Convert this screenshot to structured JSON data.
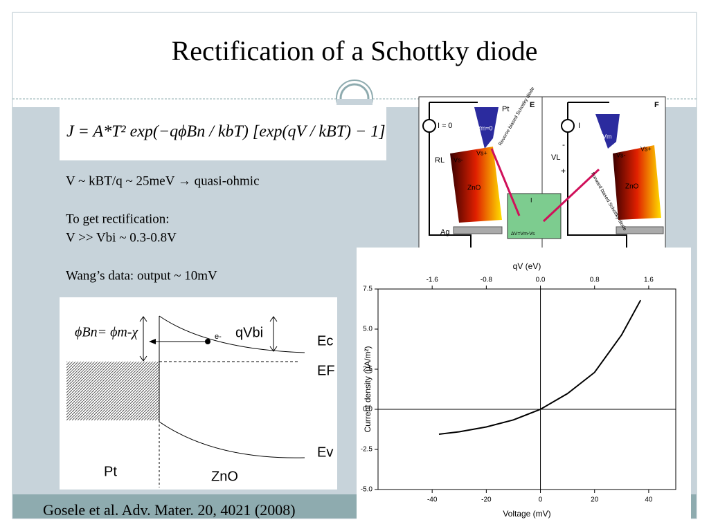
{
  "slide": {
    "title": "Rectification of a Schottky diode",
    "equation": "J = A*T² exp(−qϕBn / kbT) [exp(qV / kBT) − 1]",
    "lines": [
      "V ~ kBT/q ~ 25meV → quasi-ohmic",
      "To get rectification:",
      "V >> Vbi ~ 0.3-0.8V",
      "Wang’s data: output ~ 10mV"
    ],
    "citation": "Gosele et al. Adv. Mater. 20, 4021 (2008)"
  },
  "band_diagram": {
    "barrier": "ϕBn= ϕm-χ",
    "electron": "e-",
    "built_in": "qVbi",
    "ec": "Ec",
    "ef": "EF",
    "ev": "Ev",
    "metal": "Pt",
    "semiconductor": "ZnO"
  },
  "circuit": {
    "panel_left": "E",
    "panel_right": "F",
    "current_zero": "I ≈ 0",
    "tip": "Pt",
    "vm_zero": "Vm≈0",
    "resistor": "RL",
    "vs_minus": "Vs-",
    "vs_plus": "Vs+",
    "crystal": "ZnO",
    "reverse": "Reverse biased Schottky diode",
    "electrode": "Ag",
    "inset_i": "I",
    "delta_v": "ΔV=Vm-Vs",
    "current": "I",
    "load": "VL",
    "minus": "-",
    "plus": "+",
    "vm": "Vm",
    "forward": "Forward biased Schottky diode"
  },
  "chart_data": {
    "type": "line",
    "x_label": "Voltage (mV)",
    "y_label": "Current density (μA/m²)",
    "x2_label": "qV (eV)",
    "x": [
      -37.5,
      -30,
      -20,
      -10,
      0,
      10,
      20,
      30,
      37
    ],
    "values": [
      -1.55,
      -1.4,
      -1.1,
      -0.66,
      0,
      0.98,
      2.3,
      4.64,
      6.8
    ],
    "color": "#000000",
    "xlim": [
      -60,
      50
    ],
    "xticks": [
      -40,
      -20,
      0,
      20,
      40
    ],
    "x2lim": [
      -2.4,
      2.0
    ],
    "x2ticks": [
      -1.6,
      -0.8,
      {
        "value": 0,
        "label": "0.0"
      },
      0.8,
      1.6
    ],
    "ylim": [
      -5,
      7.5
    ],
    "yticks": [
      {
        "value": -5,
        "label": "-5.0"
      },
      -2.5,
      {
        "value": 0,
        "label": "0.0"
      },
      2.5,
      {
        "value": 5,
        "label": "5.0"
      },
      7.5
    ],
    "zero_lines": true
  }
}
